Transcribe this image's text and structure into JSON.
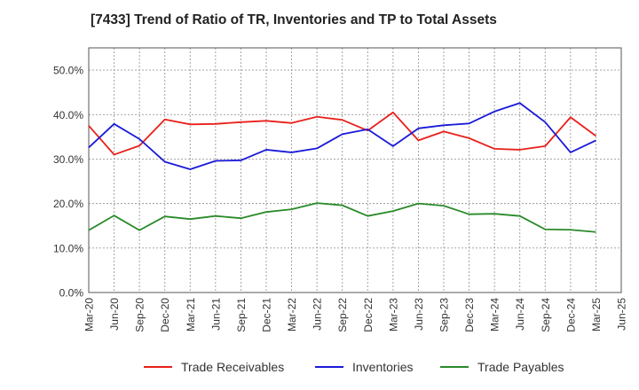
{
  "chart_data": {
    "type": "line",
    "title": "[7433]  Trend of Ratio of TR, Inventories and TP to Total Assets",
    "xlabel": "",
    "ylabel": "",
    "ylim": [
      0,
      55
    ],
    "y_ticks": [
      0,
      10,
      20,
      30,
      40,
      50
    ],
    "y_tick_labels": [
      "0.0%",
      "10.0%",
      "20.0%",
      "30.0%",
      "40.0%",
      "50.0%"
    ],
    "x_tick_labels": [
      "Mar-20",
      "Jun-20",
      "Sep-20",
      "Dec-20",
      "Mar-21",
      "Jun-21",
      "Sep-21",
      "Dec-21",
      "Mar-22",
      "Jun-22",
      "Sep-22",
      "Dec-22",
      "Mar-23",
      "Jun-23",
      "Sep-23",
      "Dec-23",
      "Mar-24",
      "Jun-24",
      "Sep-24",
      "Dec-24",
      "Mar-25",
      "Jun-25"
    ],
    "categories": [
      "Mar-20",
      "Jun-20",
      "Sep-20",
      "Dec-20",
      "Mar-21",
      "Jun-21",
      "Sep-21",
      "Dec-21",
      "Mar-22",
      "Jun-22",
      "Sep-22",
      "Dec-22",
      "Mar-23",
      "Jun-23",
      "Sep-23",
      "Dec-23",
      "Mar-24",
      "Jun-24",
      "Sep-24",
      "Dec-24",
      "Mar-25"
    ],
    "grid": true,
    "legend_position": "bottom",
    "series": [
      {
        "name": "Trade Receivables",
        "color": "#e8201a",
        "values": [
          37.5,
          31.0,
          33.0,
          38.9,
          37.8,
          37.9,
          38.3,
          38.6,
          38.1,
          39.5,
          38.8,
          36.4,
          40.5,
          34.2,
          36.2,
          34.7,
          32.3,
          32.1,
          32.9,
          39.4,
          35.2
        ]
      },
      {
        "name": "Inventories",
        "color": "#1a1ad8",
        "values": [
          32.6,
          37.9,
          34.5,
          29.4,
          27.7,
          29.6,
          29.7,
          32.1,
          31.5,
          32.4,
          35.6,
          36.7,
          32.9,
          36.9,
          37.6,
          38.0,
          40.7,
          42.6,
          38.3,
          31.5,
          34.2
        ]
      },
      {
        "name": "Trade Payables",
        "color": "#2a8a2a",
        "values": [
          14.0,
          17.3,
          14.0,
          17.1,
          16.5,
          17.2,
          16.7,
          18.1,
          18.7,
          20.1,
          19.6,
          17.2,
          18.3,
          20.0,
          19.5,
          17.6,
          17.7,
          17.2,
          14.2,
          14.1,
          13.6
        ]
      }
    ]
  }
}
